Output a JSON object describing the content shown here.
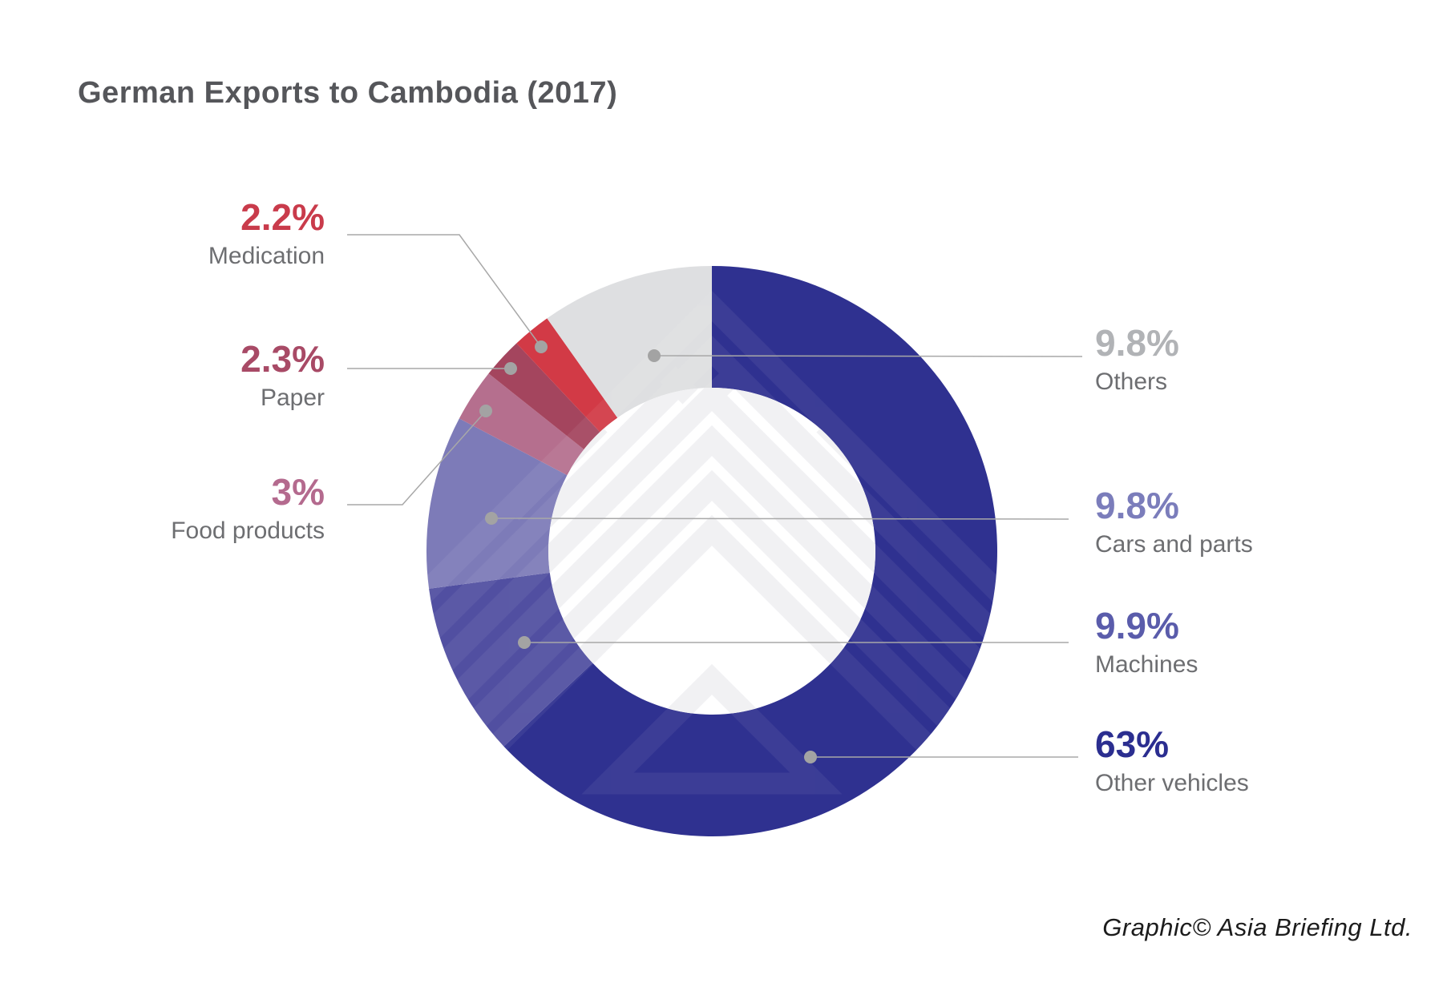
{
  "title": "German Exports to Cambodia (2017)",
  "footer_credit": "Graphic© Asia Briefing Ltd.",
  "chart_data": {
    "type": "pie",
    "subtype": "donut",
    "title": "German Exports to Cambodia (2017)",
    "unit": "percent",
    "start_angle_deg": 0,
    "direction": "clockwise",
    "legend_position": "callout-labels",
    "slices": [
      {
        "label": "Other vehicles",
        "value": 63,
        "value_label": "63%",
        "color": "#2f3190",
        "value_color": "#2b2e90"
      },
      {
        "label": "Machines",
        "value": 9.9,
        "value_label": "9.9%",
        "color": "#514fa1",
        "value_color": "#5a5cab"
      },
      {
        "label": "Cars and parts",
        "value": 9.8,
        "value_label": "9.8%",
        "color": "#7d7bb8",
        "value_color": "#7b7dbb"
      },
      {
        "label": "Food products",
        "value": 3,
        "value_label": "3%",
        "color": "#b56f8e",
        "value_color": "#b46a8e"
      },
      {
        "label": "Paper",
        "value": 2.3,
        "value_label": "2.3%",
        "color": "#a4455e",
        "value_color": "#a84a66"
      },
      {
        "label": "Medication",
        "value": 2.2,
        "value_label": "2.2%",
        "color": "#d23a46",
        "value_color": "#c93b4b"
      },
      {
        "label": "Others",
        "value": 9.8,
        "value_label": "9.8%",
        "color": "#dedfe1",
        "value_color": "#b1b3b6"
      }
    ],
    "category_label_color": "#6d6e71",
    "leader_line_color": "#a8a8a8",
    "leader_dot_color": "#a3a3a3",
    "title_color": "#55565a"
  }
}
